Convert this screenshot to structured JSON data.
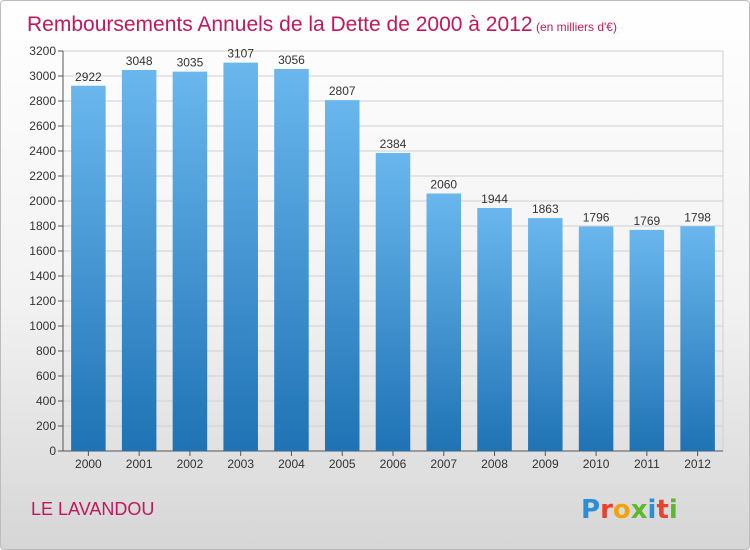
{
  "chart_data": {
    "type": "bar",
    "title": "Remboursements Annuels de la Dette de 2000 à 2012",
    "subtitle": "(en milliers d'€)",
    "categories": [
      "2000",
      "2001",
      "2002",
      "2003",
      "2004",
      "2005",
      "2006",
      "2007",
      "2008",
      "2009",
      "2010",
      "2011",
      "2012"
    ],
    "values": [
      2922,
      3048,
      3035,
      3107,
      3056,
      2807,
      2384,
      2060,
      1944,
      1863,
      1796,
      1769,
      1798
    ],
    "ylim": [
      0,
      3200
    ],
    "yticks": [
      0,
      200,
      400,
      600,
      800,
      1000,
      1200,
      1400,
      1600,
      1800,
      2000,
      2200,
      2400,
      2600,
      2800,
      3000,
      3200
    ],
    "grid": true,
    "xlabel": "",
    "ylabel": ""
  },
  "footer": {
    "location": "LE LAVANDOU",
    "brand": "Proxiti"
  },
  "colors": {
    "title": "#c2185b",
    "bar_light": "#6ab7ee",
    "bar_dark": "#1f73b4",
    "grid": "#d0d0d0",
    "text": "#333333"
  }
}
